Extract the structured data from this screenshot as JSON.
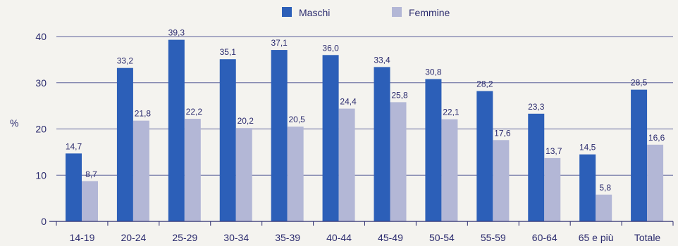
{
  "chart_data": {
    "type": "bar",
    "title": "",
    "xlabel": "",
    "ylabel": "%",
    "ylim": [
      0,
      40
    ],
    "yticks": [
      0,
      10,
      20,
      30,
      40
    ],
    "grid": true,
    "legend_position": "top-center",
    "categories": [
      "14-19",
      "20-24",
      "25-29",
      "30-34",
      "35-39",
      "40-44",
      "45-49",
      "50-54",
      "55-59",
      "60-64",
      "65 e più",
      "Totale"
    ],
    "series": [
      {
        "name": "Maschi",
        "color": "#2c5fb8",
        "values": [
          14.7,
          33.2,
          39.3,
          35.1,
          37.1,
          36.0,
          33.4,
          30.8,
          28.2,
          23.3,
          14.5,
          28.5
        ],
        "labels": [
          "14,7",
          "33,2",
          "39,3",
          "35,1",
          "37,1",
          "36,0",
          "33,4",
          "30,8",
          "28,2",
          "23,3",
          "14,5",
          "28,5"
        ]
      },
      {
        "name": "Femmine",
        "color": "#b3b7d6",
        "values": [
          8.7,
          21.8,
          22.2,
          20.2,
          20.5,
          24.4,
          25.8,
          22.1,
          17.6,
          13.7,
          5.8,
          16.6
        ],
        "labels": [
          "8,7",
          "21,8",
          "22,2",
          "20,2",
          "20,5",
          "24,4",
          "25,8",
          "22,1",
          "17,6",
          "13,7",
          "5,8",
          "16,6"
        ]
      }
    ]
  }
}
